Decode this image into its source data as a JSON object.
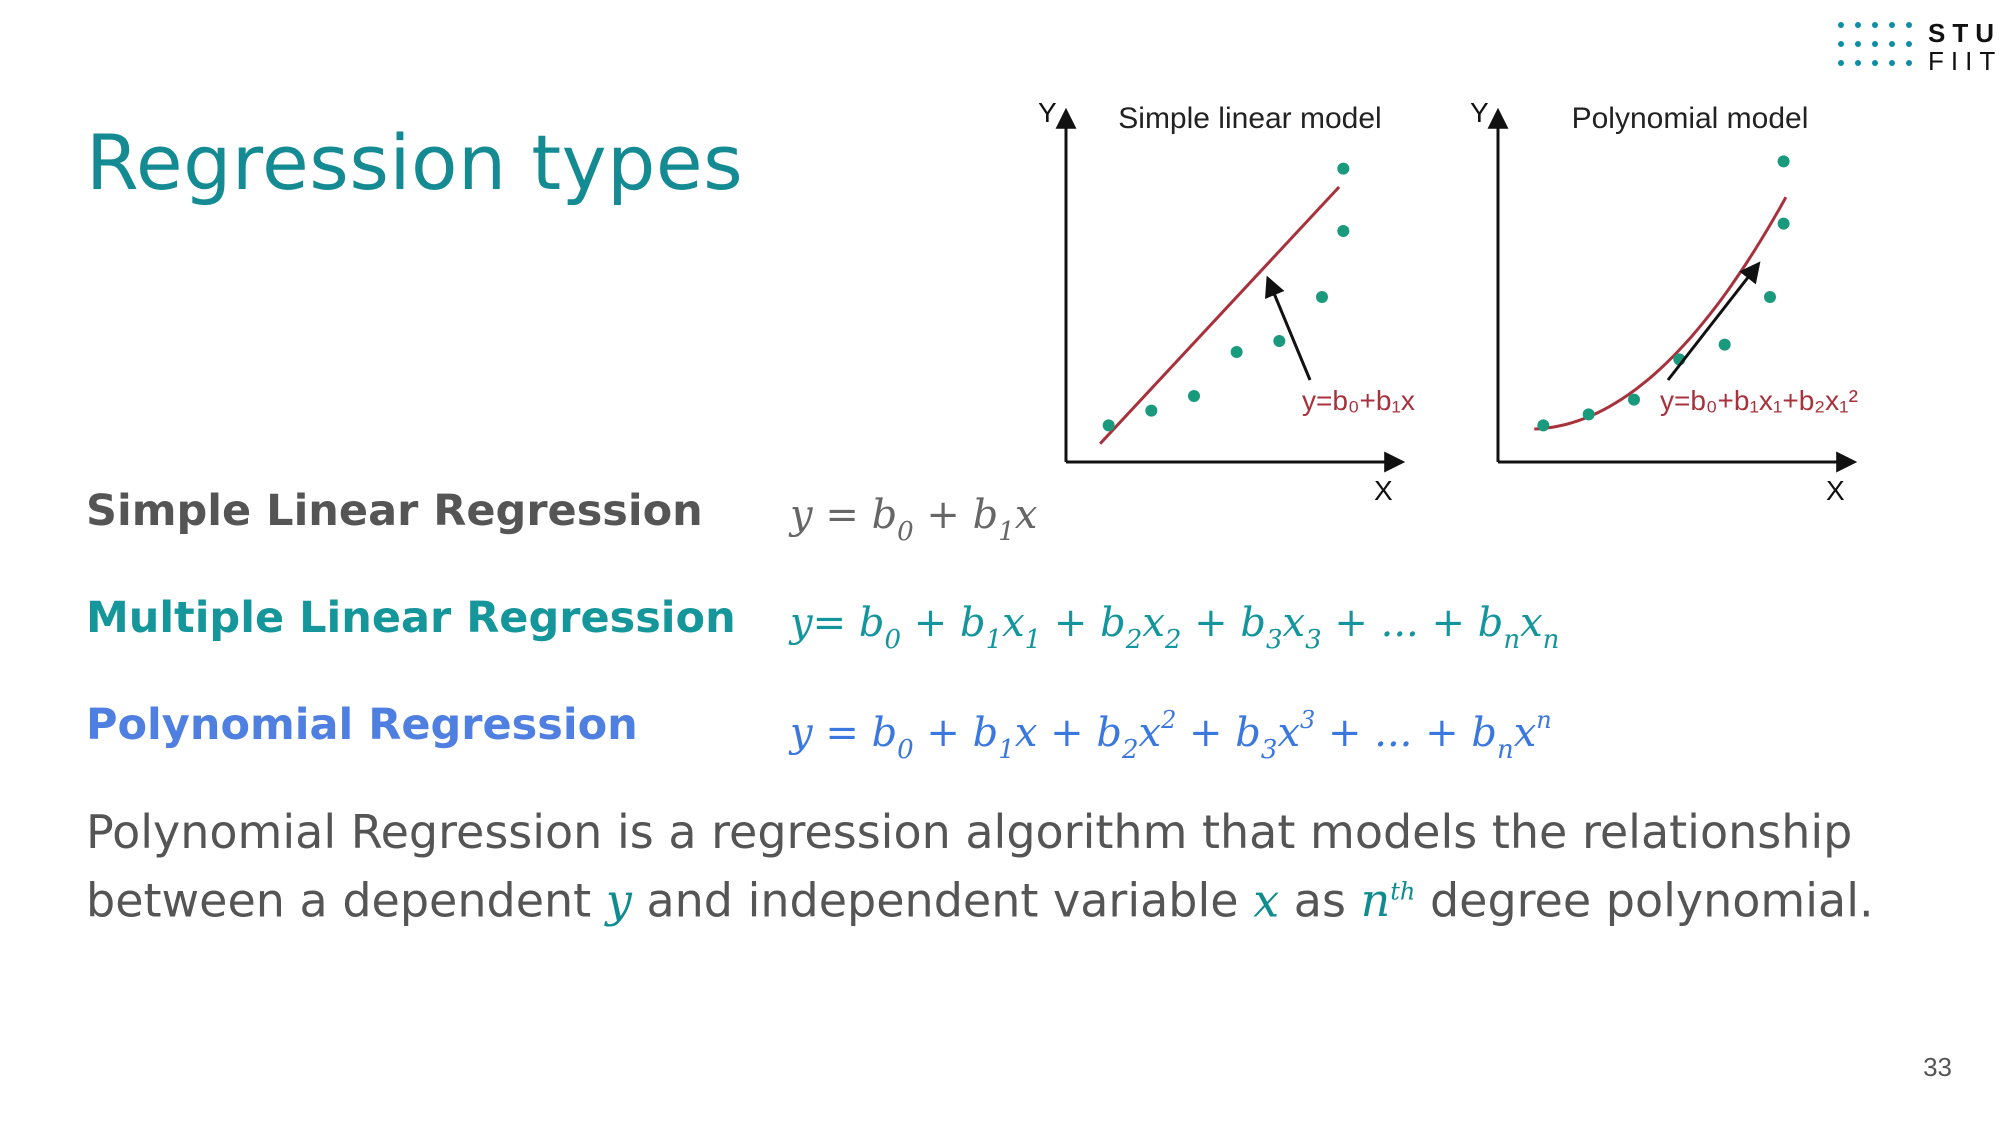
{
  "slide": {
    "title": "Regression types",
    "page_number": "33",
    "logo": {
      "line1": "STU",
      "line2": "FIIT"
    }
  },
  "regressions": [
    {
      "label": "Simple Linear Regression",
      "color": "#555555"
    },
    {
      "label": "Multiple Linear Regression",
      "color": "#14969b"
    },
    {
      "label": "Polynomial Regression",
      "color": "#4f7fe0"
    }
  ],
  "formulas": {
    "simple": {
      "y": "y",
      "eq": " = ",
      "b": "b",
      "s0": "0",
      "plus": " + ",
      "s1": "1",
      "x": "x"
    },
    "multiple": {
      "y": "y",
      "eq": "= ",
      "b": "b",
      "x": "x",
      "plus": " + ",
      "dots": " + ... + ",
      "s0": "0",
      "s1": "1",
      "s2": "2",
      "s3": "3",
      "sn": "n"
    },
    "poly": {
      "y": "y",
      "eq": " = ",
      "b": "b",
      "x": "x",
      "plus": " + ",
      "dots": " + ... + ",
      "s0": "0",
      "s1": "1",
      "s2": "2",
      "s3": "3",
      "sn": "n",
      "p2": "2",
      "p3": "3",
      "pn": "n"
    }
  },
  "description": {
    "part1": "Polynomial Regression is a regression algorithm that models the relationship between a dependent ",
    "var_y": "y",
    "part2": " and independent variable ",
    "var_x": "x",
    "part3": " as ",
    "var_n": "n",
    "sup_th": "th",
    "part4": " degree polynomial."
  },
  "colors": {
    "title": "#148b93",
    "point": "#1a9a7c",
    "line": "#a8323c",
    "axis": "#111111"
  },
  "chart_data": [
    {
      "type": "scatter",
      "title": "Simple linear model",
      "xlabel": "X",
      "ylabel": "Y",
      "grid": false,
      "x": [
        1,
        2,
        3,
        4,
        5,
        6,
        6.5,
        6.5
      ],
      "y": [
        1.0,
        1.4,
        1.8,
        3.0,
        3.3,
        4.5,
        6.3,
        8.0
      ],
      "fit": {
        "kind": "linear",
        "label": "y=b₀+b₁x"
      }
    },
    {
      "type": "scatter",
      "title": "Polynomial model",
      "xlabel": "X",
      "ylabel": "Y",
      "grid": false,
      "x": [
        1,
        2,
        3,
        4,
        5,
        6,
        6.3,
        6.3
      ],
      "y": [
        1.0,
        1.3,
        1.7,
        2.8,
        3.2,
        4.5,
        6.5,
        8.2
      ],
      "fit": {
        "kind": "quadratic",
        "label": "y=b₀+b₁x₁+b₂x₁²"
      }
    }
  ]
}
